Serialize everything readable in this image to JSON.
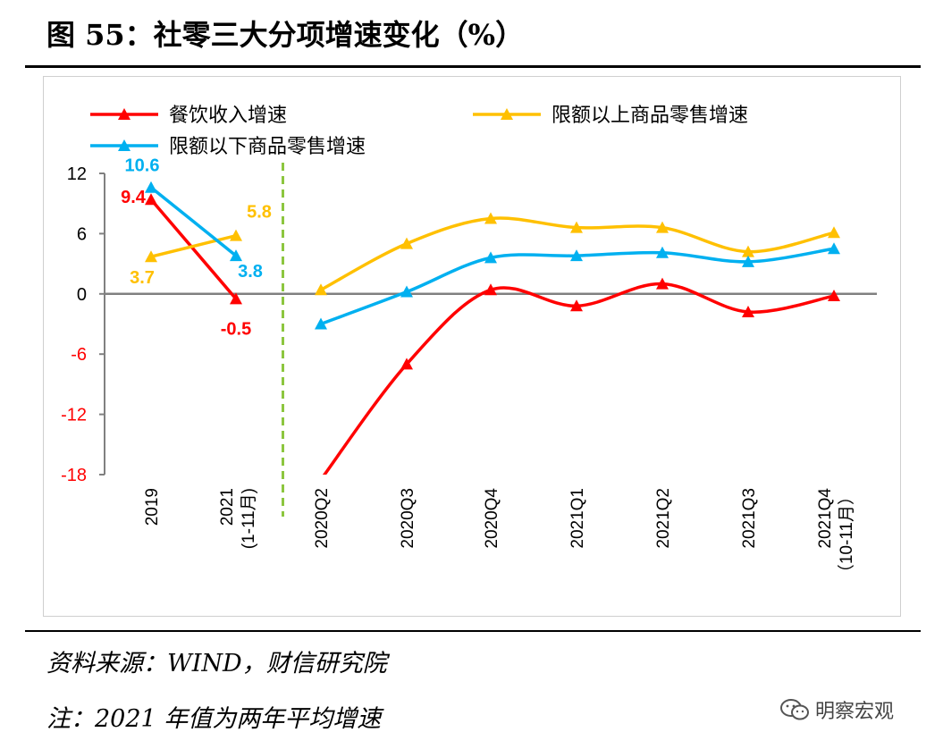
{
  "title": "图 55：社零三大分项增速变化（%）",
  "source": "资料来源：WIND，财信研究院",
  "note": "注：2021 年值为两年平均增速",
  "watermark": {
    "text": "明察宏观",
    "icon": "wechat-icon"
  },
  "chart_data": {
    "type": "line",
    "title": "",
    "xlabel": "",
    "ylabel": "",
    "ylim": [
      -18,
      12
    ],
    "yticks": [
      "12",
      "6",
      "0",
      "-6",
      "-12",
      "-18"
    ],
    "ytick_colors": {
      "positive": "#000000",
      "negative": "#ff0000"
    },
    "legend_placement": "top",
    "grid": false,
    "divider": {
      "after_index": 1,
      "color": "#8cc63f",
      "style": "dashed"
    },
    "categories": [
      "2019",
      "2021\n(1-11月)",
      "2020Q2",
      "2020Q3",
      "2020Q4",
      "2021Q1",
      "2021Q2",
      "2021Q3",
      "2021Q4\n（10-11月）"
    ],
    "series": [
      {
        "name": "餐饮收入增速",
        "color": "#ff0000",
        "values": [
          9.4,
          -0.5,
          -18.5,
          -7.0,
          0.4,
          -1.2,
          1.0,
          -1.8,
          -0.2
        ],
        "labels": [
          "9.4",
          "-0.5",
          "",
          "",
          "",
          "",
          "",
          "",
          ""
        ],
        "label_colors": [
          "#ff0000",
          "#ff0000",
          "",
          "",
          "",
          "",
          "",
          "",
          ""
        ]
      },
      {
        "name": "限额以上商品零售增速",
        "color": "#ffc000",
        "values": [
          3.7,
          5.8,
          0.4,
          5.0,
          7.5,
          6.6,
          6.6,
          4.2,
          6.1
        ],
        "labels": [
          "3.7",
          "5.8",
          "",
          "",
          "",
          "",
          "",
          "",
          ""
        ],
        "label_colors": [
          "#ffc000",
          "#ffc000",
          "",
          "",
          "",
          "",
          "",
          "",
          ""
        ]
      },
      {
        "name": "限额以下商品零售增速",
        "color": "#00b0f0",
        "values": [
          10.6,
          3.8,
          -3.0,
          0.2,
          3.6,
          3.8,
          4.1,
          3.2,
          4.5
        ],
        "labels": [
          "10.6",
          "3.8",
          "",
          "",
          "",
          "",
          "",
          "",
          ""
        ],
        "label_colors": [
          "#00b0f0",
          "#00b0f0",
          "",
          "",
          "",
          "",
          "",
          "",
          ""
        ]
      }
    ]
  }
}
